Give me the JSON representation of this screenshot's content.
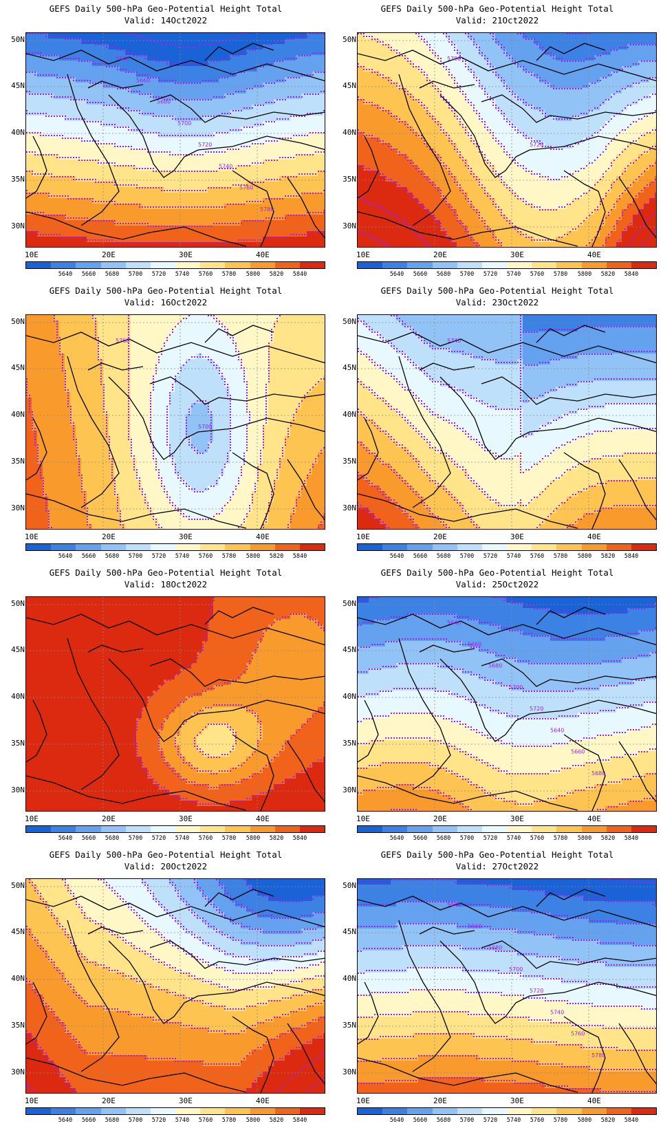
{
  "colorbar": {
    "levels": [
      "5640",
      "5660",
      "5680",
      "5700",
      "5720",
      "5740",
      "5760",
      "5780",
      "5800",
      "5820",
      "5840"
    ],
    "colors": [
      "#1a63d6",
      "#3b82e4",
      "#64a2ef",
      "#92c3f6",
      "#bfe0fb",
      "#e8f8ff",
      "#fff8c6",
      "#ffe48a",
      "#fdc451",
      "#f99a2c",
      "#f1631a",
      "#dc2a10"
    ]
  },
  "axes": {
    "lat_labels": [
      "50N",
      "45N",
      "40N",
      "35N",
      "30N"
    ],
    "lon_labels": [
      "10E",
      "20E",
      "30E",
      "40E"
    ]
  },
  "contour_color": "#a020f0",
  "panels": [
    {
      "title": "GEFS Daily 500-hPa Geo-Potential Height Total",
      "valid": "Valid: 14Oct2022",
      "contour_labels": [
        "5640",
        "5660",
        "5680",
        "5700",
        "5720",
        "5740",
        "5760",
        "5780"
      ]
    },
    {
      "title": "GEFS Daily 500-hPa Geo-Potential Height Total",
      "valid": "Valid: 21Oct2022",
      "contour_labels": [
        "5780",
        "5720"
      ]
    },
    {
      "title": "GEFS Daily 500-hPa Geo-Potential Height Total",
      "valid": "Valid: 16Oct2022",
      "contour_labels": [
        "5760",
        "5700"
      ]
    },
    {
      "title": "GEFS Daily 500-hPa Geo-Potential Height Total",
      "valid": "Valid: 23Oct2022",
      "contour_labels": [
        "5740"
      ]
    },
    {
      "title": "GEFS Daily 500-hPa Geo-Potential Height Total",
      "valid": "Valid: 18Oct2022",
      "contour_labels": []
    },
    {
      "title": "GEFS Daily 500-hPa Geo-Potential Height Total",
      "valid": "Valid: 25Oct2022",
      "contour_labels": [
        "5640",
        "5660",
        "5680",
        "5700",
        "5720",
        "5640",
        "5660",
        "5680"
      ]
    },
    {
      "title": "GEFS Daily 500-hPa Geo-Potential Height Total",
      "valid": "Valid: 20Oct2022",
      "contour_labels": []
    },
    {
      "title": "GEFS Daily 500-hPa Geo-Potential Height Total",
      "valid": "Valid: 27Oct2022",
      "contour_labels": [
        "5640",
        "5660",
        "5680",
        "5700",
        "5720",
        "5740",
        "5760",
        "5780"
      ]
    }
  ]
}
